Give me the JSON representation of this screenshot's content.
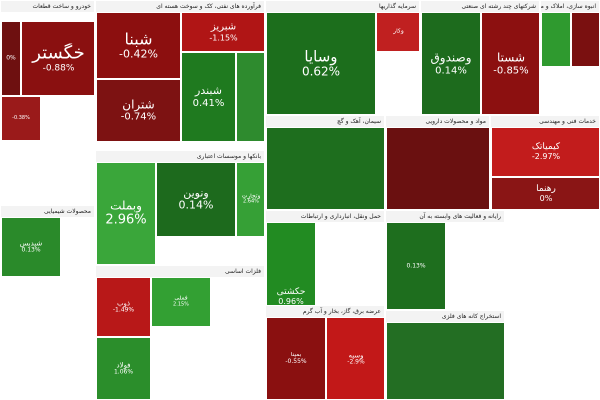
{
  "chart_data": {
    "type": "treemap",
    "sectors": [
      {
        "label": "خودرو و ساخت قطعات",
        "tiles": [
          {
            "name": "خگستر",
            "change": "-0.88%",
            "color": "#8a1010"
          },
          {
            "name": "",
            "change": "0%",
            "color": "#6e1010"
          },
          {
            "name": "",
            "change": "-0.38%",
            "color": "#9a1a1a"
          }
        ]
      },
      {
        "label": "فرآورده های نفتی، کک و سوخت هسته ای",
        "tiles": [
          {
            "name": "شبنا",
            "change": "-0.42%",
            "color": "#8c0f0f"
          },
          {
            "name": "شبریز",
            "change": "-1.15%",
            "color": "#b01515"
          },
          {
            "name": "شتران",
            "change": "-0.74%",
            "color": "#7d1212"
          },
          {
            "name": "شبندر",
            "change": "0.41%",
            "color": "#1f7a1f"
          },
          {
            "name": "",
            "change": "",
            "color": "#2e8b2e"
          }
        ]
      },
      {
        "label": "سرمایه گذاریها",
        "tiles": [
          {
            "name": "وسایا",
            "change": "0.62%",
            "color": "#1c6e1c"
          },
          {
            "name": "وکار",
            "change": "",
            "color": "#c02020"
          }
        ]
      },
      {
        "label": "شرکتهای چند رشته ای صنعتی",
        "tiles": [
          {
            "name": "وصندوق",
            "change": "0.14%",
            "color": "#1d6b1d"
          },
          {
            "name": "شستا",
            "change": "-0.85%",
            "color": "#8c1010"
          }
        ]
      },
      {
        "label": "انبوه سازی، املاک و مستغلات",
        "tiles": [
          {
            "name": "",
            "change": "",
            "color": "#2f9a2f"
          },
          {
            "name": "",
            "change": "",
            "color": "#7a1010"
          }
        ]
      },
      {
        "label": "سیمان، آهک و گچ",
        "tiles": [
          {
            "name": "",
            "change": "",
            "color": "#1e6e1e"
          }
        ]
      },
      {
        "label": "مواد و محصولات دارویی",
        "tiles": [
          {
            "name": "",
            "change": "",
            "color": "#6a1010"
          }
        ]
      },
      {
        "label": "خدمات فنی و مهندسی",
        "tiles": [
          {
            "name": "کیمیاتک",
            "change": "-2.97%",
            "color": "#c21c1c"
          },
          {
            "name": "رهنما",
            "change": "0%",
            "color": "#8a1515"
          }
        ]
      },
      {
        "label": "بانکها و موسسات اعتباری",
        "tiles": [
          {
            "name": "وبملت",
            "change": "2.96%",
            "color": "#3aa63a"
          },
          {
            "name": "ونوین",
            "change": "0.14%",
            "color": "#1d6a1d"
          },
          {
            "name": "وتجارت",
            "change": "2.64%",
            "color": "#36a036"
          }
        ]
      },
      {
        "label": "حمل ونقل، انبارداری و ارتباطات",
        "tiles": [
          {
            "name": "حکشتی",
            "change": "0.96%",
            "color": "#228b22"
          }
        ]
      },
      {
        "label": "محصولات شیمیایی",
        "tiles": [
          {
            "name": "شپدیس",
            "change": "0.13%",
            "color": "#2a8a2a"
          }
        ]
      },
      {
        "label": "فلزات اساسی",
        "tiles": [
          {
            "name": "فملی",
            "change": "2.15%",
            "color": "#33a033"
          },
          {
            "name": "ذوب",
            "change": "-1.49%",
            "color": "#b81818"
          },
          {
            "name": "فولاد",
            "change": "1.06%",
            "color": "#2b8e2b"
          }
        ]
      },
      {
        "label": "عرضه برق، گاز، بخار و آب گرم",
        "tiles": [
          {
            "name": "بمپنا",
            "change": "-0.55%",
            "color": "#8a1010"
          },
          {
            "name": "وسپه",
            "change": "-2.9%",
            "color": "#c21818"
          }
        ]
      },
      {
        "label": "رایانه و فعالیت های وابسته به آن",
        "tiles": [
          {
            "name": "",
            "change": "0.13%",
            "color": "#1e6e1e"
          }
        ]
      },
      {
        "label": "استخراج کانه های فلزی",
        "tiles": [
          {
            "name": "",
            "change": "",
            "color": "#236e23"
          }
        ]
      }
    ]
  }
}
